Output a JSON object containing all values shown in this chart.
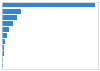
{
  "values": [
    190000,
    38000,
    30000,
    22000,
    14000,
    10000,
    7000,
    5000,
    3500,
    2500,
    1500
  ],
  "bar_color": "#2E86DE",
  "background_color": "#ffffff",
  "border_color": "#cccccc",
  "bar_height": 0.75
}
